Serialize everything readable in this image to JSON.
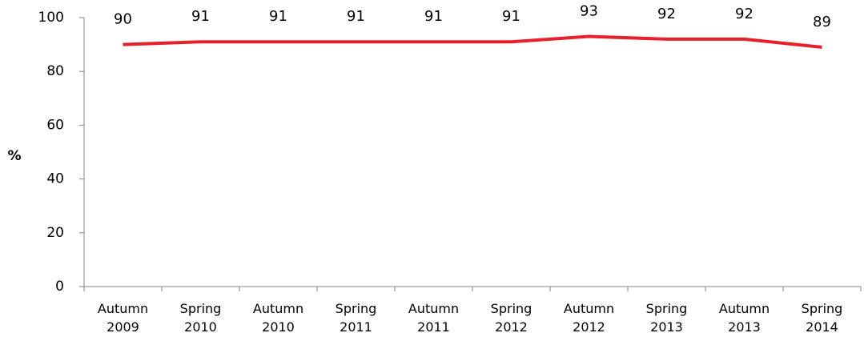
{
  "chart_data": {
    "type": "line",
    "y_label": "%",
    "categories": [
      "Autumn 2009",
      "Spring 2010",
      "Autumn 2010",
      "Spring 2011",
      "Autumn 2011",
      "Spring 2012",
      "Autumn 2012",
      "Spring 2013",
      "Autumn 2013",
      "Spring 2014"
    ],
    "series": [
      {
        "color": "#e8202a",
        "values": [
          90,
          91,
          91,
          91,
          91,
          91,
          93,
          92,
          92,
          89
        ]
      }
    ],
    "ylim": [
      0,
      100
    ],
    "yticks": [
      0,
      20,
      40,
      60,
      80,
      100
    ],
    "grid": false
  }
}
